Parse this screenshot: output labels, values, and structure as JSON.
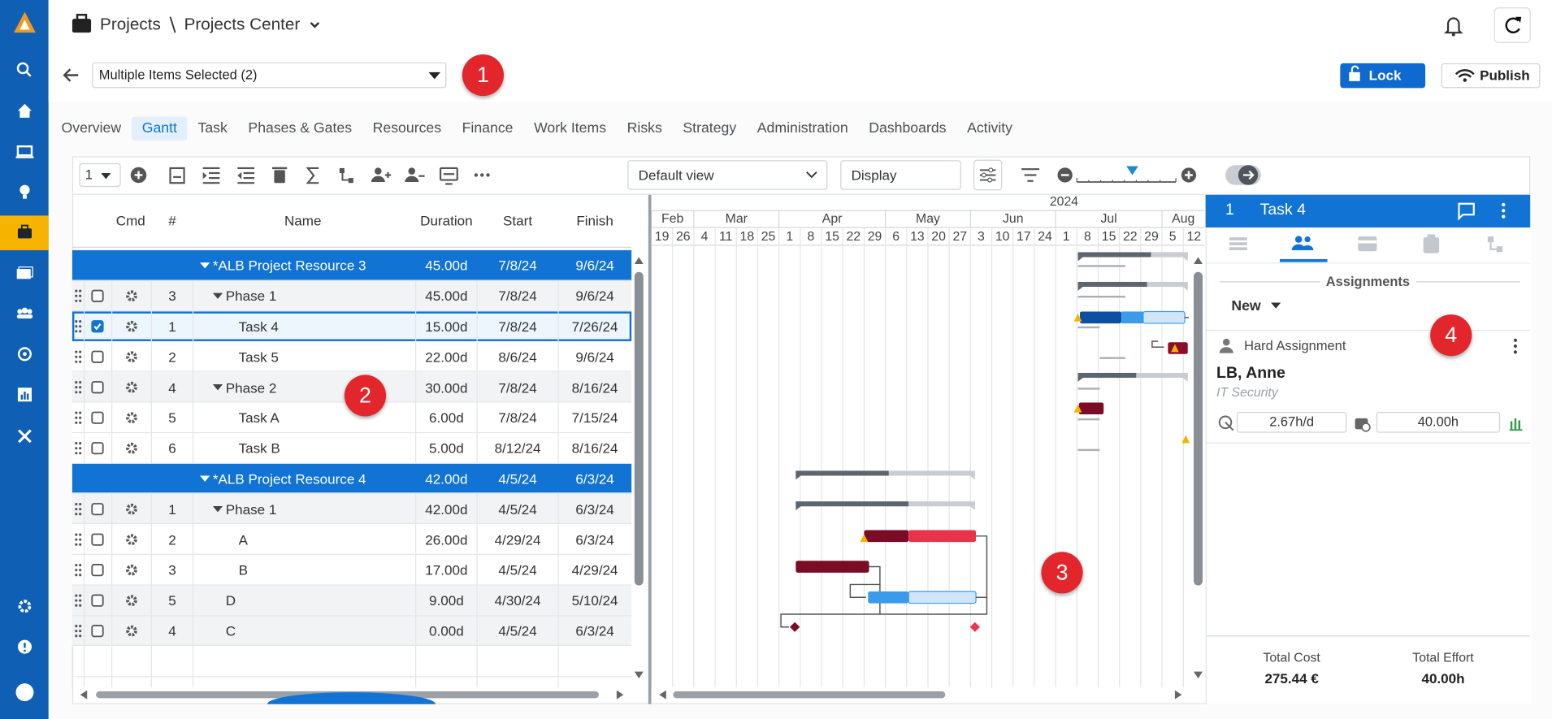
{
  "header": {
    "section": "Projects",
    "page": "Projects Center"
  },
  "selector": "Multiple Items Selected (2)",
  "actions": {
    "lock": "Lock",
    "publish": "Publish"
  },
  "callouts": [
    "1",
    "2",
    "3",
    "4"
  ],
  "tabs": [
    "Overview",
    "Gantt",
    "Task",
    "Phases & Gates",
    "Resources",
    "Finance",
    "Work Items",
    "Risks",
    "Strategy",
    "Administration",
    "Dashboards",
    "Activity"
  ],
  "toolbar": {
    "level": "1",
    "view": "Default view",
    "display": "Display"
  },
  "grid": {
    "columns": [
      "Cmd",
      "#",
      "Name",
      "Duration",
      "Start",
      "Finish"
    ],
    "groups": [
      {
        "name": "*ALB Project Resource 3",
        "duration": "45.00d",
        "start": "7/8/24",
        "finish": "9/6/24",
        "rows": [
          {
            "num": 3,
            "name": "Phase 1",
            "duration": "45.00d",
            "start": "7/8/24",
            "finish": "9/6/24",
            "rows": [
              {
                "num": 1,
                "name": "Task 4",
                "duration": "15.00d",
                "start": "7/8/24",
                "finish": "7/26/24",
                "checked": true
              },
              {
                "num": 2,
                "name": "Task 5",
                "duration": "22.00d",
                "start": "8/6/24",
                "finish": "9/6/24"
              }
            ]
          },
          {
            "num": 4,
            "name": "Phase 2",
            "duration": "30.00d",
            "start": "7/8/24",
            "finish": "8/16/24",
            "rows": [
              {
                "num": 5,
                "name": "Task A",
                "duration": "6.00d",
                "start": "7/8/24",
                "finish": "7/15/24"
              },
              {
                "num": 6,
                "name": "Task B",
                "duration": "5.00d",
                "start": "8/12/24",
                "finish": "8/16/24"
              }
            ]
          }
        ]
      },
      {
        "name": "*ALB Project Resource 4",
        "duration": "42.00d",
        "start": "4/5/24",
        "finish": "6/3/24",
        "rows": [
          {
            "num": 1,
            "name": "Phase 1",
            "duration": "42.00d",
            "start": "4/5/24",
            "finish": "6/3/24",
            "rows": [
              {
                "num": 2,
                "name": "A",
                "duration": "26.00d",
                "start": "4/29/24",
                "finish": "6/3/24"
              },
              {
                "num": 3,
                "name": "B",
                "duration": "17.00d",
                "start": "4/5/24",
                "finish": "4/29/24"
              }
            ]
          },
          {
            "num": 5,
            "name": "D",
            "duration": "9.00d",
            "start": "4/30/24",
            "finish": "5/10/24"
          },
          {
            "num": 4,
            "name": "C",
            "duration": "0.00d",
            "start": "4/5/24",
            "finish": "6/3/24"
          }
        ]
      }
    ]
  },
  "timeline": {
    "year": "2024",
    "months": [
      "Feb",
      "Mar",
      "Apr",
      "May",
      "Jun",
      "Jul",
      "Aug"
    ],
    "days": [
      19,
      26,
      4,
      11,
      18,
      25,
      1,
      8,
      15,
      22,
      29,
      6,
      13,
      20,
      27,
      3,
      10,
      17,
      24,
      1,
      8,
      15,
      22,
      29,
      5,
      12
    ]
  },
  "panel": {
    "id": "1",
    "title": "Task 4",
    "section": "Assignments",
    "new": "New",
    "assignment": {
      "type": "Hard Assignment",
      "name": "LB, Anne",
      "department": "IT Security",
      "rate": "2.67h/d",
      "effort": "40.00h"
    },
    "totals": [
      {
        "label": "Total Cost",
        "value": "275.44 €"
      },
      {
        "label": "Total Effort",
        "value": "40.00h"
      }
    ]
  }
}
